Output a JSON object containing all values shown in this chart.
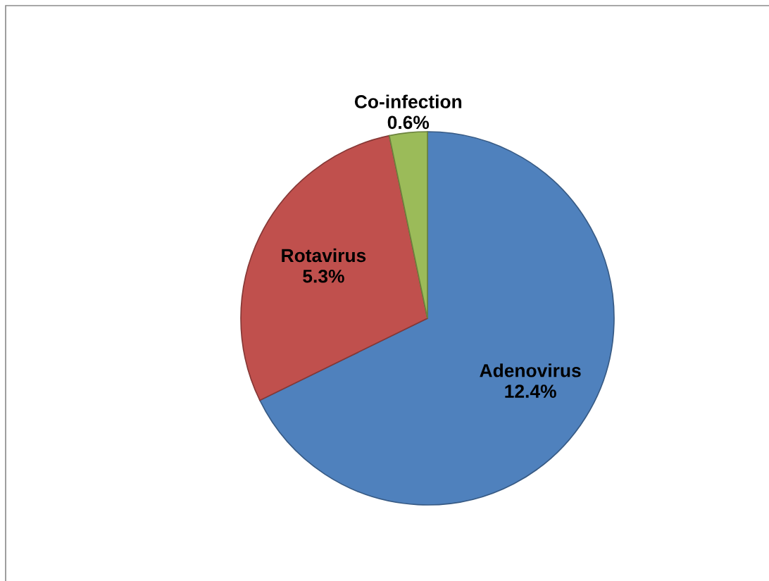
{
  "chart_data": {
    "type": "pie",
    "categories": [
      "Adenovirus",
      "Rotavirus",
      "Co-infection"
    ],
    "values": [
      12.4,
      5.3,
      0.6
    ],
    "value_labels": [
      "12.4%",
      "5.3%",
      "0.6%"
    ],
    "colors": [
      "#4f81bd",
      "#c0504d",
      "#9bbb59"
    ],
    "legend": false
  }
}
